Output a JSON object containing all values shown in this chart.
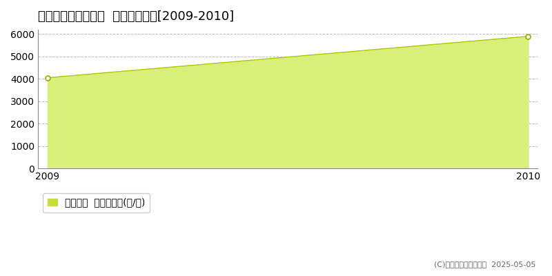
{
  "title": "知多郡南知多町豊丘  農地価格推移[2009-2010]",
  "years": [
    2009,
    2010
  ],
  "values": [
    4050,
    5900
  ],
  "fill_color": "#d8ef7a",
  "line_color": "#b0c800",
  "marker_color": "#ffffff",
  "marker_edge_color": "#9aaa00",
  "ylim": [
    0,
    6200
  ],
  "yticks": [
    0,
    1000,
    2000,
    3000,
    4000,
    5000,
    6000
  ],
  "xlim_left": 2009,
  "xlim_right": 2010,
  "grid_color": "#bbbbbb",
  "legend_label": "農地価格  平均坪単価(円/坪)",
  "legend_color": "#c8dc3c",
  "copyright_text": "(C)土地価格ドットコム  2025-05-05",
  "bg_color": "#ffffff",
  "title_fontsize": 13,
  "tick_fontsize": 10,
  "legend_fontsize": 10,
  "spine_color": "#888888"
}
